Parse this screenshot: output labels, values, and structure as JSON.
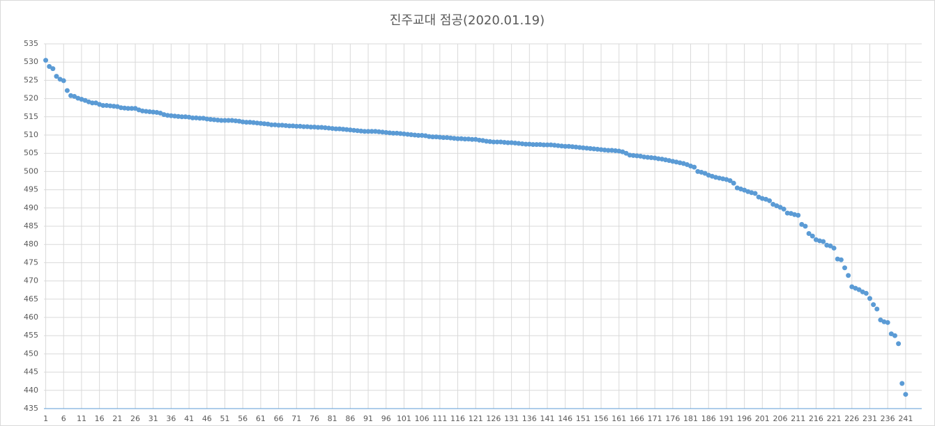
{
  "chart_data": {
    "type": "scatter",
    "title": "진주교대 점공(2020.01.19)",
    "x": [
      1,
      2,
      3,
      4,
      5,
      6,
      7,
      8,
      9,
      10,
      11,
      12,
      13,
      14,
      15,
      16,
      17,
      18,
      19,
      20,
      21,
      22,
      23,
      24,
      25,
      26,
      27,
      28,
      29,
      30,
      31,
      32,
      33,
      34,
      35,
      36,
      37,
      38,
      39,
      40,
      41,
      42,
      43,
      44,
      45,
      46,
      47,
      48,
      49,
      50,
      51,
      52,
      53,
      54,
      55,
      56,
      57,
      58,
      59,
      60,
      61,
      62,
      63,
      64,
      65,
      66,
      67,
      68,
      69,
      70,
      71,
      72,
      73,
      74,
      75,
      76,
      77,
      78,
      79,
      80,
      81,
      82,
      83,
      84,
      85,
      86,
      87,
      88,
      89,
      90,
      91,
      92,
      93,
      94,
      95,
      96,
      97,
      98,
      99,
      100,
      101,
      102,
      103,
      104,
      105,
      106,
      107,
      108,
      109,
      110,
      111,
      112,
      113,
      114,
      115,
      116,
      117,
      118,
      119,
      120,
      121,
      122,
      123,
      124,
      125,
      126,
      127,
      128,
      129,
      130,
      131,
      132,
      133,
      134,
      135,
      136,
      137,
      138,
      139,
      140,
      141,
      142,
      143,
      144,
      145,
      146,
      147,
      148,
      149,
      150,
      151,
      152,
      153,
      154,
      155,
      156,
      157,
      158,
      159,
      160,
      161,
      162,
      163,
      164,
      165,
      166,
      167,
      168,
      169,
      170,
      171,
      172,
      173,
      174,
      175,
      176,
      177,
      178,
      179,
      180,
      181,
      182,
      183,
      184,
      185,
      186,
      187,
      188,
      189,
      190,
      191,
      192,
      193,
      194,
      195,
      196,
      197,
      198,
      199,
      200,
      201,
      202,
      203,
      204,
      205,
      206,
      207,
      208,
      209,
      210,
      211,
      212,
      213,
      214,
      215,
      216,
      217,
      218,
      219,
      220,
      221,
      222,
      223,
      224,
      225,
      226,
      227,
      228,
      229,
      230,
      231,
      232,
      233,
      234,
      235,
      236,
      237,
      238,
      239,
      240,
      241
    ],
    "values": [
      530.5,
      528.8,
      528.2,
      526.1,
      525.3,
      524.9,
      522.2,
      520.8,
      520.6,
      520.1,
      519.8,
      519.5,
      519.1,
      518.8,
      518.8,
      518.4,
      518.1,
      518.1,
      518.0,
      517.9,
      517.8,
      517.5,
      517.4,
      517.3,
      517.3,
      517.3,
      516.9,
      516.6,
      516.5,
      516.4,
      516.3,
      516.2,
      516.0,
      515.6,
      515.4,
      515.3,
      515.2,
      515.1,
      515.0,
      515.0,
      514.9,
      514.7,
      514.7,
      514.6,
      514.6,
      514.4,
      514.3,
      514.2,
      514.1,
      514.0,
      514.0,
      514.0,
      514.0,
      513.9,
      513.8,
      513.6,
      513.5,
      513.5,
      513.4,
      513.3,
      513.2,
      513.1,
      513.0,
      512.8,
      512.8,
      512.7,
      512.7,
      512.6,
      512.5,
      512.5,
      512.4,
      512.4,
      512.3,
      512.3,
      512.2,
      512.2,
      512.1,
      512.1,
      512.0,
      511.9,
      511.8,
      511.7,
      511.7,
      511.6,
      511.5,
      511.4,
      511.3,
      511.2,
      511.1,
      511.0,
      511.0,
      511.0,
      511.0,
      510.9,
      510.8,
      510.7,
      510.6,
      510.5,
      510.5,
      510.4,
      510.3,
      510.2,
      510.1,
      510.0,
      509.9,
      509.9,
      509.8,
      509.6,
      509.5,
      509.5,
      509.4,
      509.3,
      509.3,
      509.2,
      509.1,
      509.0,
      509.0,
      508.9,
      508.9,
      508.8,
      508.8,
      508.6,
      508.5,
      508.3,
      508.2,
      508.1,
      508.1,
      508.1,
      508.0,
      507.9,
      507.9,
      507.8,
      507.7,
      507.6,
      507.5,
      507.5,
      507.4,
      507.4,
      507.4,
      507.3,
      507.3,
      507.3,
      507.2,
      507.1,
      507.0,
      506.9,
      506.9,
      506.8,
      506.7,
      506.6,
      506.5,
      506.4,
      506.3,
      506.2,
      506.1,
      506.0,
      505.9,
      505.8,
      505.8,
      505.7,
      505.6,
      505.4,
      505.0,
      504.5,
      504.4,
      504.3,
      504.2,
      504.0,
      503.9,
      503.8,
      503.7,
      503.5,
      503.4,
      503.2,
      503.0,
      502.8,
      502.6,
      502.4,
      502.2,
      501.9,
      501.5,
      501.2,
      500.0,
      499.8,
      499.5,
      499.0,
      498.7,
      498.4,
      498.2,
      498.0,
      497.8,
      497.5,
      496.8,
      495.5,
      495.2,
      494.9,
      494.5,
      494.2,
      494.0,
      493.0,
      492.6,
      492.4,
      492.0,
      491.0,
      490.6,
      490.2,
      489.7,
      488.6,
      488.5,
      488.2,
      488.0,
      485.5,
      485.0,
      483.0,
      482.3,
      481.3,
      481.0,
      480.8,
      479.8,
      479.6,
      479.0,
      476.0,
      475.8,
      473.6,
      471.5,
      468.4,
      468.0,
      467.6,
      467.0,
      466.6,
      465.2,
      463.5,
      462.3,
      459.3,
      458.8,
      458.6,
      455.5,
      455.0,
      452.8,
      441.9,
      438.9
    ],
    "color": "#5b9bd5",
    "xlim": [
      0.5,
      245.5
    ],
    "xticks": [
      1,
      6,
      11,
      16,
      21,
      26,
      31,
      36,
      41,
      46,
      51,
      56,
      61,
      66,
      71,
      76,
      81,
      86,
      91,
      96,
      101,
      106,
      111,
      116,
      121,
      126,
      131,
      136,
      141,
      146,
      151,
      156,
      161,
      166,
      171,
      176,
      181,
      186,
      191,
      196,
      201,
      206,
      211,
      216,
      221,
      226,
      231,
      236,
      241
    ],
    "ylim": [
      435,
      535
    ],
    "yticks": [
      435,
      440,
      445,
      450,
      455,
      460,
      465,
      470,
      475,
      480,
      485,
      490,
      495,
      500,
      505,
      510,
      515,
      520,
      525,
      530,
      535
    ],
    "grid": true
  }
}
